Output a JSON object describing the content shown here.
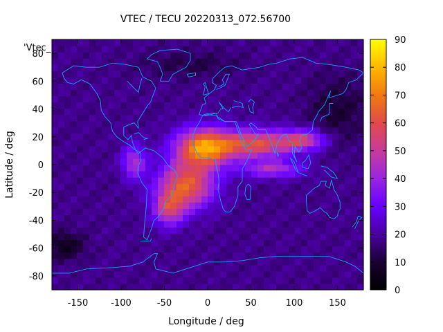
{
  "chart_data": {
    "type": "heatmap",
    "title": "VTEC / TECU 20220313_072.56700",
    "xlabel": "Longitude / deg",
    "ylabel": "Latitude / deg",
    "xlim": [
      -180,
      180
    ],
    "ylim": [
      -90,
      90
    ],
    "xticks": [
      -150,
      -100,
      -50,
      0,
      50,
      100,
      150
    ],
    "yticks": [
      -80,
      -60,
      -40,
      -20,
      0,
      20,
      40,
      60,
      80
    ],
    "key_label": "'Vtec_",
    "colorbar": {
      "range": [
        0,
        90
      ],
      "ticks": [
        0,
        10,
        20,
        30,
        40,
        50,
        60,
        70,
        80,
        90
      ],
      "palette": [
        "#000000",
        "#1a0033",
        "#4a00a0",
        "#6600ff",
        "#9926e0",
        "#c83c9a",
        "#e04a4a",
        "#f07a10",
        "#ffb800",
        "#ffff00"
      ]
    },
    "grid": false,
    "peak_region": {
      "description": "equatorial anomaly crest",
      "lon_range": [
        -90,
        130
      ],
      "lat_range": [
        -45,
        30
      ],
      "max_value": 75
    },
    "background_value": 18,
    "min_value": 3
  }
}
